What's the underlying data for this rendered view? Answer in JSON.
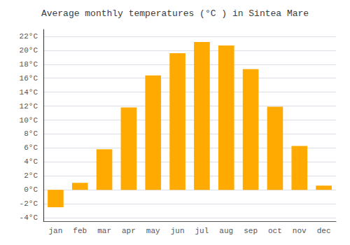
{
  "chart_data": {
    "type": "bar",
    "title": "Average monthly temperatures (°C ) in Sintea Mare",
    "categories": [
      "jan",
      "feb",
      "mar",
      "apr",
      "may",
      "jun",
      "jul",
      "aug",
      "sep",
      "oct",
      "nov",
      "dec"
    ],
    "values": [
      -2.5,
      1.0,
      5.8,
      11.8,
      16.4,
      19.6,
      21.2,
      20.7,
      17.3,
      11.9,
      6.3,
      0.6
    ],
    "color": "#FFAA00",
    "ylim": [
      -4.5,
      23
    ],
    "yticks": [
      {
        "value": -4,
        "label": "-4°C"
      },
      {
        "value": -2,
        "label": "-2°C"
      },
      {
        "value": 0,
        "label": "0°C"
      },
      {
        "value": 2,
        "label": "2°C"
      },
      {
        "value": 4,
        "label": "4°C"
      },
      {
        "value": 6,
        "label": "6°C"
      },
      {
        "value": 8,
        "label": "8°C"
      },
      {
        "value": 10,
        "label": "10°C"
      },
      {
        "value": 12,
        "label": "12°C"
      },
      {
        "value": 14,
        "label": "14°C"
      },
      {
        "value": 16,
        "label": "16°C"
      },
      {
        "value": 18,
        "label": "18°C"
      },
      {
        "value": 20,
        "label": "20°C"
      },
      {
        "value": 22,
        "label": "22°C"
      }
    ],
    "grid": true
  }
}
